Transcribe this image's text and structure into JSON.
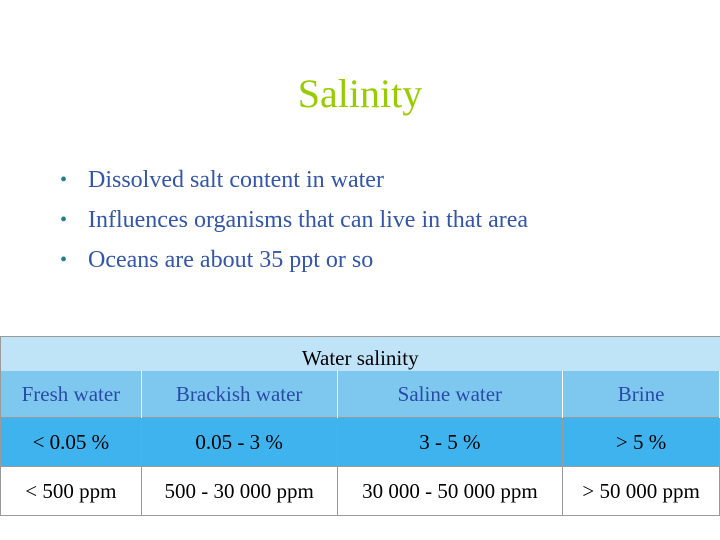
{
  "slide": {
    "title": "Salinity",
    "bullets": [
      "Dissolved salt content in water",
      "Influences organisms that can live in that area",
      "Oceans are about 35 ppt or so"
    ]
  },
  "table": {
    "caption": "Water salinity",
    "headers": [
      "Fresh water",
      "Brackish water",
      "Saline water",
      "Brine"
    ],
    "percent_row": [
      "< 0.05 %",
      "0.05 - 3 %",
      "3 - 5 %",
      "> 5 %"
    ],
    "ppm_row": [
      "< 500 ppm",
      "500 - 30 000 ppm",
      "30 000 - 50 000 ppm",
      "> 50 000 ppm"
    ]
  },
  "colors": {
    "title": "#99cc00",
    "bullet_text": "#3355aa",
    "caption_bg": "#bfe3f7",
    "header_bg": "#7ec8f0",
    "percent_bg": "#3fb3ee"
  }
}
